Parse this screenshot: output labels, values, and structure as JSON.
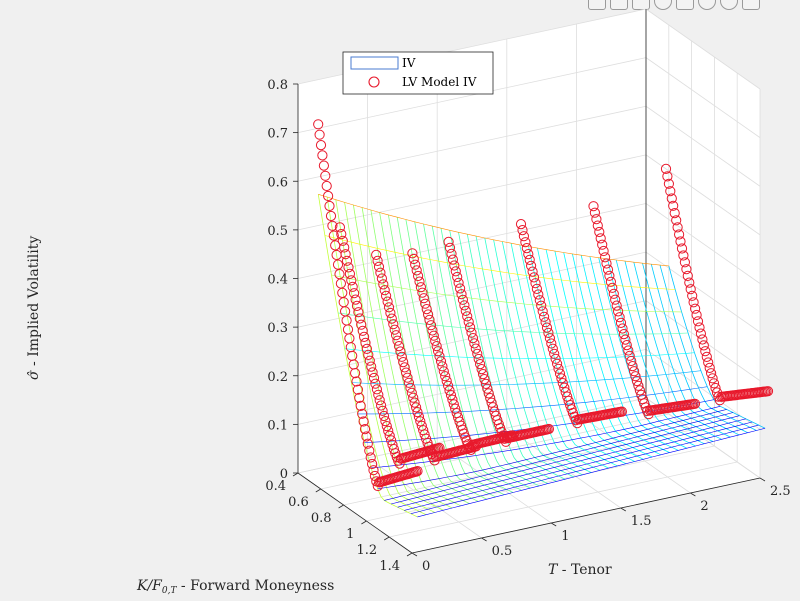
{
  "toolbar": {
    "icons": [
      "export-icon",
      "brush-icon",
      "datatip-icon",
      "rotate-icon",
      "pan-icon",
      "zoom-in-icon",
      "zoom-out-icon",
      "home-icon"
    ]
  },
  "chart_data": {
    "type": "surface3d",
    "title": "",
    "xlabel": "K/F_{0,T} - Forward Moneyness",
    "ylabel": "T - Tenor",
    "zlabel": "σ̂ - Implied Volatility",
    "xlim": [
      0.4,
      1.4
    ],
    "ylim": [
      0,
      2.5
    ],
    "zlim": [
      0,
      0.8
    ],
    "xticks": [
      "0.4",
      "0.6",
      "0.8",
      "1",
      "1.2",
      "1.4"
    ],
    "yticks": [
      "0",
      "0.5",
      "1",
      "1.5",
      "2",
      "2.5"
    ],
    "zticks": [
      "0",
      "0.1",
      "0.2",
      "0.3",
      "0.4",
      "0.5",
      "0.6",
      "0.7",
      "0.8"
    ],
    "grid": true,
    "legend": {
      "placement": "top-center",
      "entries": [
        "IV",
        "LV Model IV"
      ]
    },
    "colors": {
      "lv_markers": "#e8192c",
      "colormap": "jet",
      "background": "#f0f0f0"
    },
    "series": [
      {
        "name": "LV Model IV",
        "tenors": [
          0.1,
          0.25,
          0.5,
          0.75,
          1.0,
          1.5,
          2.0,
          2.5
        ],
        "atm_iv": [
          0.06,
          0.1,
          0.09,
          0.1,
          0.1,
          0.11,
          0.1,
          0.1
        ],
        "left_wing_iv": [
          0.72,
          0.5,
          0.43,
          0.42,
          0.43,
          0.44,
          0.45,
          0.5
        ]
      }
    ],
    "surface": {
      "tenors": [
        0.1,
        2.5
      ],
      "min_iv": 0.01,
      "max_iv": 0.62
    }
  }
}
